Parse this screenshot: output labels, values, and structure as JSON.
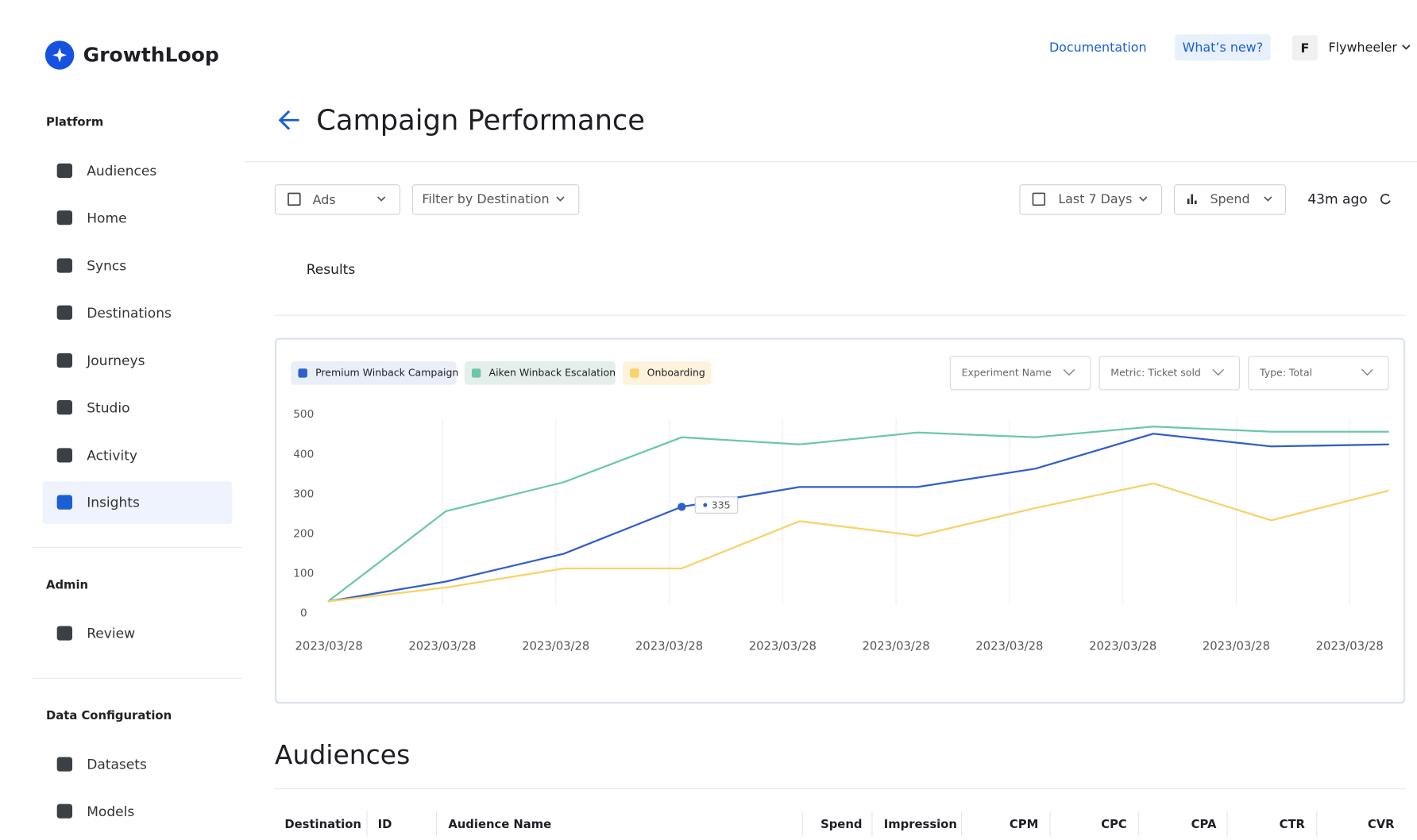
{
  "header": {
    "logo": "GrowthLoop",
    "links": [
      "Documentation",
      "What’s new?"
    ],
    "avatar": "F",
    "user": "Flywheeler"
  },
  "sidebar": {
    "sections": [
      {
        "title": "Platform",
        "items": [
          "Audiences",
          "Home",
          "Syncs",
          "Destinations",
          "Journeys",
          "Studio",
          "Activity",
          "Insights"
        ]
      },
      {
        "title": "Admin",
        "items": [
          "Review"
        ]
      },
      {
        "title": "Data Configuration",
        "items": [
          "Datasets",
          "Models"
        ]
      }
    ]
  },
  "page": {
    "title": "Campaign Performance",
    "filters": [
      "Ads",
      "Filter by Destination"
    ],
    "date_range": "Last 7 Days",
    "metric": "Spend",
    "updated": "43m ago",
    "tab": "Results",
    "chart_filters": [
      "Experiment Name",
      "Metric: Ticket sold",
      "Type: Total"
    ],
    "section_title": "Audiences",
    "table": {
      "columns": [
        "Destination",
        "ID",
        "Audience Name",
        "Spend",
        "Impression",
        "CPM",
        "CPC",
        "CPA",
        "CTR",
        "CVR"
      ]
    }
  },
  "chart_data": {
    "type": "line",
    "categories": [
      "2023/03/28",
      "2023/03/28",
      "2023/03/28",
      "2023/03/28",
      "2023/03/28",
      "2023/03/28",
      "2023/03/28",
      "2023/03/28",
      "2023/03/28",
      "2023/03/28"
    ],
    "series": [
      {
        "name": "Premium Winback Campaign",
        "color": "#2f5fc9",
        "values": [
          30,
          80,
          150,
          268,
          318,
          318,
          364,
          452,
          420,
          425
        ]
      },
      {
        "name": "Aiken Winback Escalation",
        "color": "#6cc7a8",
        "values": [
          30,
          257,
          330,
          443,
          425,
          455,
          443,
          470,
          457,
          457
        ]
      },
      {
        "name": "Onboarding",
        "color": "#f6d36b",
        "values": [
          30,
          65,
          113,
          113,
          232,
          195,
          265,
          327,
          234,
          309
        ]
      }
    ],
    "annotation": 335,
    "ylim": [
      0,
      500
    ],
    "yticks": [
      0,
      100,
      200,
      300,
      400,
      500
    ],
    "grid": true
  }
}
